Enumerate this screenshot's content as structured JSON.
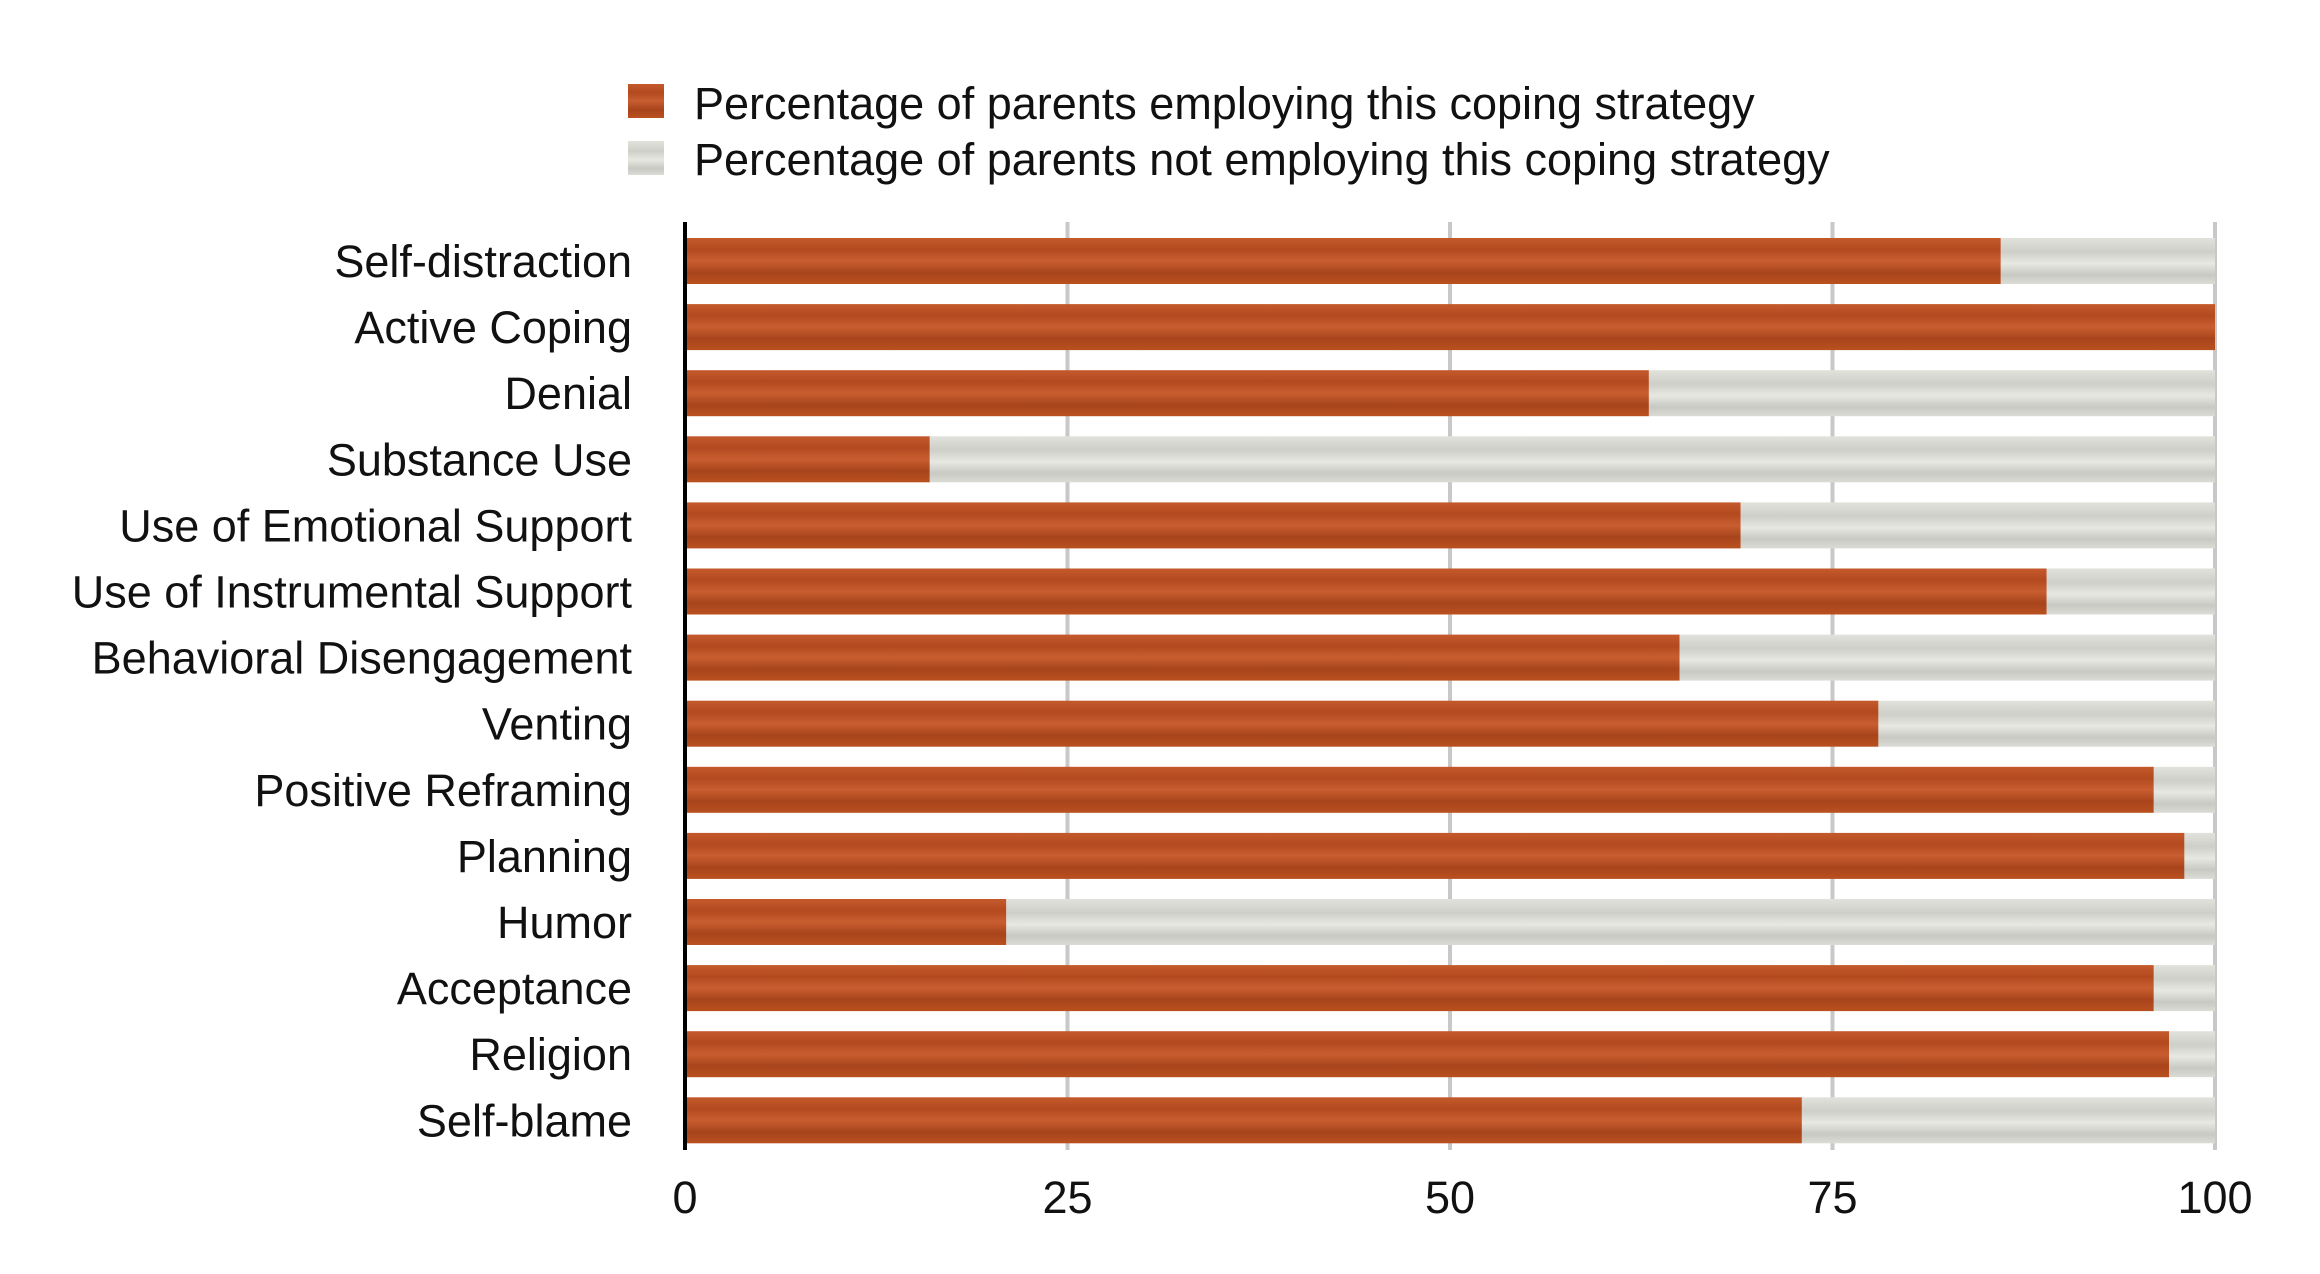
{
  "chart_data": {
    "type": "bar",
    "orientation": "horizontal",
    "stacked": true,
    "categories": [
      "Self-distraction",
      "Active Coping",
      "Denial",
      "Substance Use",
      "Use of Emotional Support",
      "Use of Instrumental Support",
      "Behavioral Disengagement",
      "Venting",
      "Positive Reframing",
      "Planning",
      "Humor",
      "Acceptance",
      "Religion",
      "Self-blame"
    ],
    "series": [
      {
        "name": "Percentage of parents employing this coping strategy",
        "color": "#b8481e",
        "values": [
          86,
          100,
          63,
          16,
          69,
          89,
          65,
          78,
          96,
          98,
          21,
          96,
          97,
          73
        ]
      },
      {
        "name": "Percentage of parents not employing this coping strategy",
        "color": "#d6d6d0",
        "values": [
          14,
          0,
          37,
          84,
          31,
          11,
          35,
          22,
          4,
          2,
          79,
          4,
          3,
          27
        ]
      }
    ],
    "xlim": [
      0,
      100
    ],
    "xticks": [
      0,
      25,
      50,
      75,
      100
    ],
    "grid": true,
    "legend": "top"
  }
}
